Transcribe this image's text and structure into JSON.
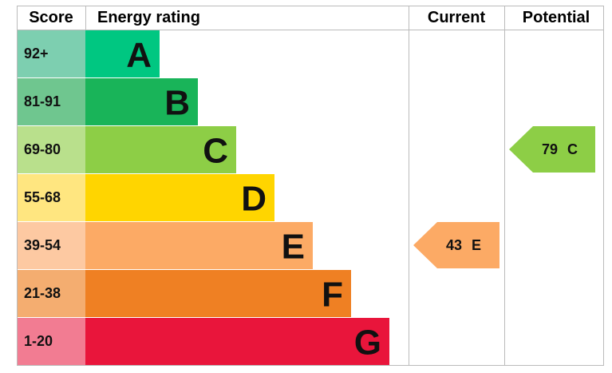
{
  "header": {
    "score": "Score",
    "rating": "Energy rating",
    "current": "Current",
    "potential": "Potential"
  },
  "bands": [
    {
      "score": "92+",
      "letter": "A",
      "color": "#00c781",
      "score_color": "#7dcfb0"
    },
    {
      "score": "81-91",
      "letter": "B",
      "color": "#19b459",
      "score_color": "#6fc68f"
    },
    {
      "score": "69-80",
      "letter": "C",
      "color": "#8dce46",
      "score_color": "#b9e08c"
    },
    {
      "score": "55-68",
      "letter": "D",
      "color": "#ffd500",
      "score_color": "#ffe680"
    },
    {
      "score": "39-54",
      "letter": "E",
      "color": "#fcaa65",
      "score_color": "#fdc9a2"
    },
    {
      "score": "21-38",
      "letter": "F",
      "color": "#ef8023",
      "score_color": "#f4ad70"
    },
    {
      "score": "1-20",
      "letter": "G",
      "color": "#e9153b",
      "score_color": "#f27c92"
    }
  ],
  "current": {
    "value": 43,
    "rating": "E"
  },
  "potential": {
    "value": 79,
    "rating": "C"
  }
}
